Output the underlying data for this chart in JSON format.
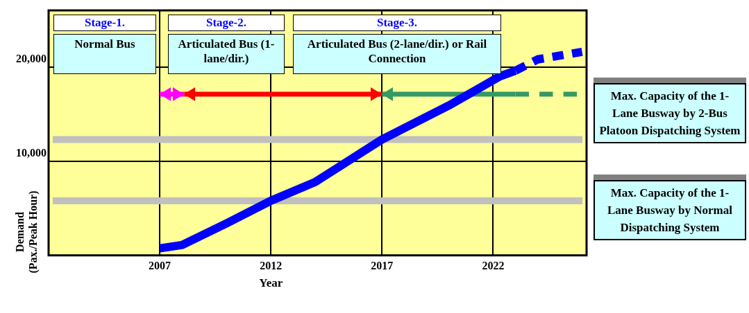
{
  "chart_data": {
    "type": "line",
    "xlabel": "Year",
    "ylabel": "Demand (Pax./Peak Hour)",
    "xlim": [
      2002,
      2026.2
    ],
    "xticks": [
      2007,
      2012,
      2017,
      2022
    ],
    "ylim": [
      0,
      26000
    ],
    "yticks": [
      {
        "value": 10000,
        "label": "10,000"
      },
      {
        "value": 20000,
        "label": "20,000"
      }
    ],
    "grid": true,
    "legend": false,
    "marker": "none",
    "series": [
      {
        "color": "#0000ff",
        "x": [
          2007,
          2008,
          2010,
          2012,
          2014,
          2017,
          2020,
          2022.3,
          2023
        ],
        "values": [
          750,
          1100,
          3400,
          5800,
          7800,
          12300,
          15900,
          19000,
          19600
        ]
      },
      {
        "color": "#0000ff",
        "line_style": "dashed",
        "x": [
          2023,
          2024,
          2025.5,
          2026
        ],
        "values": [
          19600,
          20800,
          21400,
          21600
        ]
      },
      {
        "color": "#ff00ff",
        "x": [
          2007,
          2008.1
        ],
        "values": [
          17100,
          17100
        ]
      },
      {
        "color": "#ff0000",
        "x": [
          2008.1,
          2017
        ],
        "values": [
          17100,
          17100
        ]
      },
      {
        "color": "#339966",
        "x": [
          2017,
          2023
        ],
        "values": [
          17100,
          17100
        ]
      },
      {
        "color": "#339966",
        "line_style": "dashed",
        "x": [
          2023,
          2025.8
        ],
        "values": [
          17100,
          17100
        ]
      }
    ],
    "ref_lines": [
      {
        "axis": "y",
        "value": 12300,
        "color": "#c0c0c0",
        "label": "Max. Capacity of the 1-Lane Busway by 2-Bus Platoon Dispatching System"
      },
      {
        "axis": "y",
        "value": 5800,
        "color": "#c0c0c0",
        "label": "Max. Capacity of the 1-Lane Busway by Normal Dispatching System"
      }
    ],
    "annotations": [
      "Stage-1.",
      "Normal Bus",
      "Stage-2.",
      "Articulated Bus (1-lane/dir.)",
      "Stage-3.",
      "Articulated Bus (2-lane/dir.) or Rail Connection"
    ]
  }
}
